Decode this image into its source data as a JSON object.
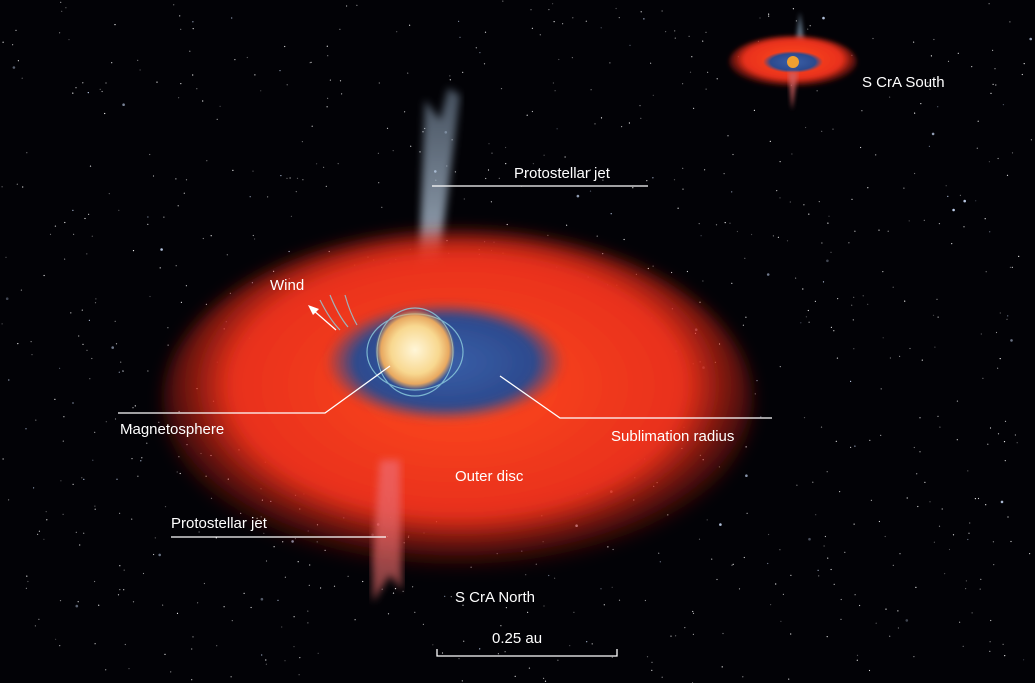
{
  "annotations": {
    "south_system": "S CrA South",
    "jet_top": "Protostellar jet",
    "wind": "Wind",
    "magnetosphere": "Magnetosphere",
    "sublimation_radius": "Sublimation radius",
    "outer_disc": "Outer disc",
    "jet_bottom": "Protostellar jet",
    "north_system": "S CrA North"
  },
  "scale_bar": {
    "label": "0.25 au"
  }
}
